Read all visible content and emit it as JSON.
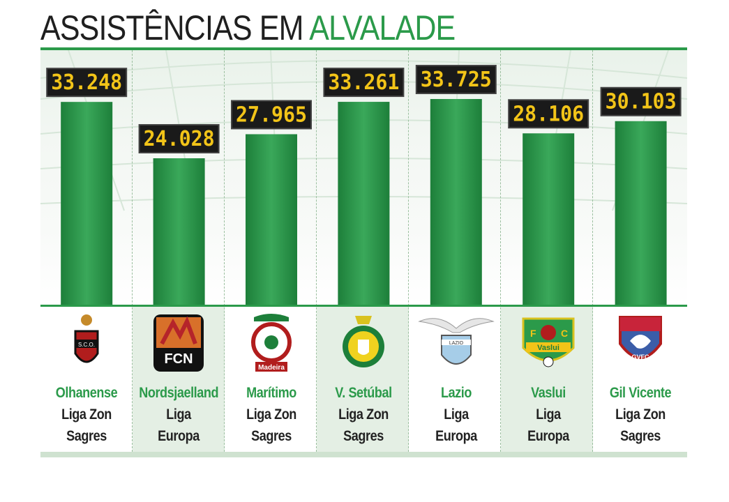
{
  "title": {
    "part1": "ASSISTÊNCIAS EM",
    "part2": "ALVALADE"
  },
  "colors": {
    "green": "#2b9a4a",
    "bar_dark": "#1d7f3a",
    "bar_light": "#3aa85a",
    "label_bg": "#1a1a1a",
    "label_text": "#f2c418"
  },
  "chart_data": {
    "type": "bar",
    "title": "ASSISTÊNCIAS EM ALVALADE",
    "categories": [
      "Olhanense",
      "Nordsjaelland",
      "Marítimo",
      "V. Setúbal",
      "Lazio",
      "Vaslui",
      "Gil Vicente"
    ],
    "values": [
      33248,
      24028,
      27965,
      33261,
      33725,
      28106,
      30103
    ],
    "value_labels": [
      "33.248",
      "24.028",
      "27.965",
      "33.261",
      "33.725",
      "28.106",
      "30.103"
    ],
    "competitions": [
      [
        "Liga Zon",
        "Sagres"
      ],
      [
        "Liga",
        "Europa"
      ],
      [
        "Liga Zon",
        "Sagres"
      ],
      [
        "Liga Zon",
        "Sagres"
      ],
      [
        "Liga",
        "Europa"
      ],
      [
        "Liga",
        "Europa"
      ],
      [
        "Liga Zon",
        "Sagres"
      ]
    ],
    "xlabel": "",
    "ylabel": "",
    "ylim": [
      0,
      38000
    ],
    "grid": false
  },
  "logos": [
    {
      "icon": "olhanense-crest-icon",
      "text": "S.C.O."
    },
    {
      "icon": "nordsjaelland-crest-icon",
      "text": "FCN"
    },
    {
      "icon": "maritimo-crest-icon",
      "text": "Madeira"
    },
    {
      "icon": "vitoria-setubal-crest-icon",
      "text": ""
    },
    {
      "icon": "lazio-crest-icon",
      "text": "LAZIO"
    },
    {
      "icon": "vaslui-crest-icon",
      "text": "Vaslui"
    },
    {
      "icon": "gil-vicente-crest-icon",
      "text": "GVFC"
    }
  ]
}
